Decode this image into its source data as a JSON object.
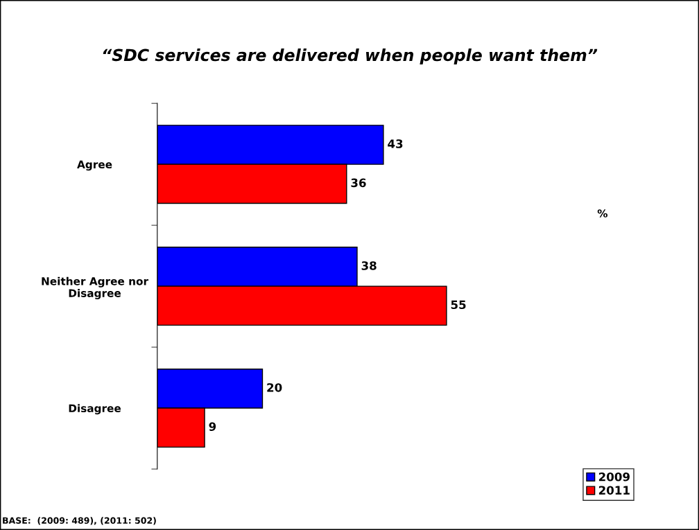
{
  "chart_data": {
    "type": "bar",
    "orientation": "horizontal",
    "title": "“SDC services are delivered when people want them”",
    "categories": [
      "Agree",
      "Neither Agree nor\nDisagree",
      "Disagree"
    ],
    "series": [
      {
        "name": "2009",
        "color": "#0000ff",
        "values": [
          43,
          38,
          20
        ]
      },
      {
        "name": "2011",
        "color": "#ff0000",
        "values": [
          36,
          55,
          9
        ]
      }
    ],
    "data_labels": true,
    "legend": "bottom right",
    "grid": false,
    "annotations": [
      "%",
      "BASE:  (2009: 489), (2011: 502)"
    ]
  }
}
